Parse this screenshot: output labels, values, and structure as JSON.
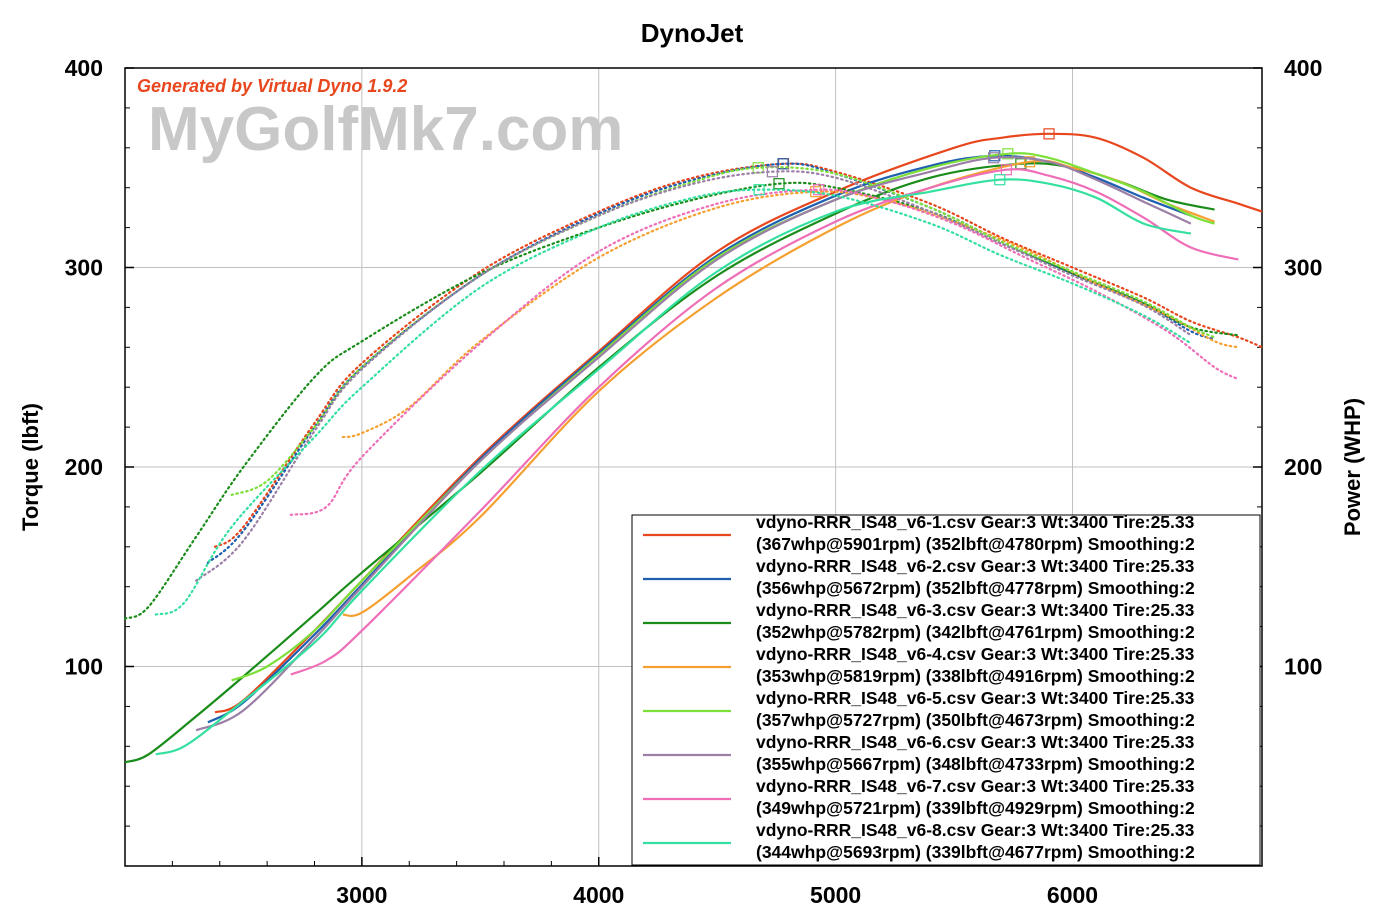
{
  "chart_data": {
    "type": "line",
    "title": "DynoJet",
    "generator_note": "Generated by Virtual Dyno 1.9.2",
    "watermark": "MyGolfMk7.com",
    "ylabel_left": "Torque (lbft)",
    "ylabel_right": "Power (WHP)",
    "xlim": [
      2000,
      6800
    ],
    "ylim": [
      0,
      400
    ],
    "x_ticks": [
      3000,
      4000,
      5000,
      6000
    ],
    "y_ticks": [
      100,
      200,
      300,
      400
    ],
    "grid": true,
    "legend_position": "bottom-right",
    "series": [
      {
        "name": "vdyno-RRR_IS48_v6-1.csv Gear:3 Wt:3400 Tire:25.33",
        "stats": "(367whp@5901rpm) (352lbft@4780rpm) Smoothing:2",
        "color": "#e8471e",
        "power": [
          [
            2380,
            77
          ],
          [
            2500,
            83
          ],
          [
            2800,
            118
          ],
          [
            3000,
            143
          ],
          [
            3500,
            205
          ],
          [
            4000,
            258
          ],
          [
            4500,
            308
          ],
          [
            5000,
            338
          ],
          [
            5500,
            360
          ],
          [
            5700,
            365
          ],
          [
            5900,
            367
          ],
          [
            6100,
            365
          ],
          [
            6300,
            355
          ],
          [
            6500,
            340
          ],
          [
            6700,
            332
          ],
          [
            6800,
            328
          ]
        ],
        "torque": [
          [
            2380,
            160
          ],
          [
            2500,
            170
          ],
          [
            2800,
            222
          ],
          [
            3000,
            252
          ],
          [
            3500,
            298
          ],
          [
            4000,
            328
          ],
          [
            4400,
            345
          ],
          [
            4780,
            352
          ],
          [
            5000,
            348
          ],
          [
            5400,
            332
          ],
          [
            5700,
            315
          ],
          [
            6000,
            300
          ],
          [
            6300,
            285
          ],
          [
            6500,
            273
          ],
          [
            6700,
            265
          ],
          [
            6800,
            260
          ]
        ],
        "peak_hp_rpm": 5901,
        "peak_tq_rpm": 4780
      },
      {
        "name": "vdyno-RRR_IS48_v6-2.csv Gear:3 Wt:3400 Tire:25.33",
        "stats": "(356whp@5672rpm) (352lbft@4778rpm) Smoothing:2",
        "color": "#1f5fb0",
        "power": [
          [
            2350,
            72
          ],
          [
            2500,
            82
          ],
          [
            2800,
            116
          ],
          [
            3000,
            141
          ],
          [
            3500,
            204
          ],
          [
            4000,
            257
          ],
          [
            4500,
            306
          ],
          [
            5000,
            336
          ],
          [
            5400,
            351
          ],
          [
            5672,
            356
          ],
          [
            5900,
            353
          ],
          [
            6100,
            345
          ],
          [
            6300,
            335
          ],
          [
            6500,
            326
          ]
        ],
        "torque": [
          [
            2350,
            152
          ],
          [
            2500,
            168
          ],
          [
            2800,
            220
          ],
          [
            3000,
            250
          ],
          [
            3500,
            296
          ],
          [
            4000,
            327
          ],
          [
            4400,
            344
          ],
          [
            4778,
            352
          ],
          [
            5000,
            347
          ],
          [
            5400,
            330
          ],
          [
            5700,
            313
          ],
          [
            6000,
            297
          ],
          [
            6300,
            282
          ],
          [
            6500,
            268
          ],
          [
            6600,
            264
          ]
        ],
        "peak_hp_rpm": 5672,
        "peak_tq_rpm": 4778
      },
      {
        "name": "vdyno-RRR_IS48_v6-3.csv Gear:3 Wt:3400 Tire:25.33",
        "stats": "(352whp@5782rpm) (342lbft@4761rpm) Smoothing:2",
        "color": "#1a8c1a",
        "power": [
          [
            2000,
            52
          ],
          [
            2100,
            56
          ],
          [
            2300,
            75
          ],
          [
            2500,
            95
          ],
          [
            2800,
            126
          ],
          [
            3000,
            147
          ],
          [
            3500,
            197
          ],
          [
            4000,
            250
          ],
          [
            4500,
            296
          ],
          [
            5000,
            327
          ],
          [
            5400,
            345
          ],
          [
            5782,
            352
          ],
          [
            6000,
            350
          ],
          [
            6200,
            343
          ],
          [
            6400,
            334
          ],
          [
            6600,
            329
          ]
        ],
        "torque": [
          [
            2000,
            124
          ],
          [
            2100,
            130
          ],
          [
            2300,
            165
          ],
          [
            2500,
            200
          ],
          [
            2800,
            245
          ],
          [
            3000,
            263
          ],
          [
            3500,
            297
          ],
          [
            4000,
            320
          ],
          [
            4400,
            334
          ],
          [
            4761,
            342
          ],
          [
            5000,
            340
          ],
          [
            5400,
            328
          ],
          [
            5700,
            312
          ],
          [
            6000,
            297
          ],
          [
            6300,
            282
          ],
          [
            6500,
            270
          ],
          [
            6700,
            266
          ]
        ],
        "peak_hp_rpm": 5782,
        "peak_tq_rpm": 4761
      },
      {
        "name": "vdyno-RRR_IS48_v6-4.csv Gear:3 Wt:3400 Tire:25.33",
        "stats": "(353whp@5819rpm) (338lbft@4916rpm) Smoothing:2",
        "color": "#f5a030",
        "power": [
          [
            2920,
            126
          ],
          [
            3000,
            127
          ],
          [
            3200,
            145
          ],
          [
            3500,
            175
          ],
          [
            4000,
            238
          ],
          [
            4500,
            285
          ],
          [
            5000,
            320
          ],
          [
            5400,
            340
          ],
          [
            5819,
            353
          ],
          [
            6000,
            350
          ],
          [
            6200,
            343
          ],
          [
            6400,
            332
          ],
          [
            6600,
            323
          ]
        ],
        "torque": [
          [
            2920,
            215
          ],
          [
            3000,
            217
          ],
          [
            3200,
            230
          ],
          [
            3500,
            263
          ],
          [
            4000,
            305
          ],
          [
            4500,
            330
          ],
          [
            4916,
            338
          ],
          [
            5200,
            334
          ],
          [
            5500,
            323
          ],
          [
            5800,
            309
          ],
          [
            6100,
            292
          ],
          [
            6400,
            276
          ],
          [
            6600,
            263
          ],
          [
            6700,
            260
          ]
        ],
        "peak_hp_rpm": 5819,
        "peak_tq_rpm": 4916
      },
      {
        "name": "vdyno-RRR_IS48_v6-5.csv Gear:3 Wt:3400 Tire:25.33",
        "stats": "(357whp@5727rpm) (350lbft@4673rpm) Smoothing:2",
        "color": "#7de03a",
        "power": [
          [
            2450,
            93
          ],
          [
            2600,
            100
          ],
          [
            2800,
            118
          ],
          [
            3000,
            143
          ],
          [
            3500,
            203
          ],
          [
            4000,
            256
          ],
          [
            4500,
            305
          ],
          [
            5000,
            334
          ],
          [
            5400,
            350
          ],
          [
            5727,
            357
          ],
          [
            5900,
            355
          ],
          [
            6100,
            347
          ],
          [
            6300,
            338
          ],
          [
            6500,
            326
          ],
          [
            6600,
            322
          ]
        ],
        "torque": [
          [
            2450,
            186
          ],
          [
            2600,
            193
          ],
          [
            2800,
            220
          ],
          [
            3000,
            250
          ],
          [
            3500,
            296
          ],
          [
            4000,
            326
          ],
          [
            4400,
            343
          ],
          [
            4673,
            350
          ],
          [
            5000,
            347
          ],
          [
            5400,
            330
          ],
          [
            5700,
            313
          ],
          [
            6000,
            298
          ],
          [
            6300,
            283
          ],
          [
            6500,
            270
          ],
          [
            6600,
            265
          ]
        ],
        "peak_hp_rpm": 5727,
        "peak_tq_rpm": 4673
      },
      {
        "name": "vdyno-RRR_IS48_v6-6.csv Gear:3 Wt:3400 Tire:25.33",
        "stats": "(355whp@5667rpm) (348lbft@4733rpm) Smoothing:2",
        "color": "#9b7fa6",
        "power": [
          [
            2300,
            68
          ],
          [
            2500,
            78
          ],
          [
            2800,
            114
          ],
          [
            3000,
            140
          ],
          [
            3500,
            203
          ],
          [
            4000,
            255
          ],
          [
            4500,
            304
          ],
          [
            5000,
            334
          ],
          [
            5400,
            348
          ],
          [
            5667,
            355
          ],
          [
            5900,
            353
          ],
          [
            6100,
            344
          ],
          [
            6300,
            333
          ],
          [
            6500,
            322
          ]
        ],
        "torque": [
          [
            2300,
            143
          ],
          [
            2500,
            163
          ],
          [
            2800,
            218
          ],
          [
            3000,
            249
          ],
          [
            3500,
            296
          ],
          [
            4000,
            326
          ],
          [
            4400,
            342
          ],
          [
            4733,
            348
          ],
          [
            5000,
            345
          ],
          [
            5400,
            328
          ],
          [
            5700,
            312
          ],
          [
            6000,
            296
          ],
          [
            6300,
            281
          ],
          [
            6500,
            266
          ]
        ],
        "peak_hp_rpm": 5667,
        "peak_tq_rpm": 4733
      },
      {
        "name": "vdyno-RRR_IS48_v6-7.csv Gear:3 Wt:3400 Tire:25.33",
        "stats": "(349whp@5721rpm) (339lbft@4929rpm) Smoothing:2",
        "color": "#ee6eb7",
        "power": [
          [
            2700,
            96
          ],
          [
            2850,
            103
          ],
          [
            3000,
            118
          ],
          [
            3500,
            178
          ],
          [
            4000,
            240
          ],
          [
            4500,
            290
          ],
          [
            5000,
            323
          ],
          [
            5400,
            340
          ],
          [
            5721,
            349
          ],
          [
            5900,
            346
          ],
          [
            6100,
            338
          ],
          [
            6300,
            325
          ],
          [
            6500,
            310
          ],
          [
            6700,
            304
          ]
        ],
        "torque": [
          [
            2700,
            176
          ],
          [
            2850,
            180
          ],
          [
            3000,
            205
          ],
          [
            3500,
            262
          ],
          [
            4000,
            308
          ],
          [
            4500,
            332
          ],
          [
            4929,
            339
          ],
          [
            5200,
            334
          ],
          [
            5500,
            322
          ],
          [
            5800,
            305
          ],
          [
            6100,
            288
          ],
          [
            6400,
            268
          ],
          [
            6600,
            250
          ],
          [
            6700,
            244
          ]
        ],
        "peak_hp_rpm": 5721,
        "peak_tq_rpm": 4929
      },
      {
        "name": "vdyno-RRR_IS48_v6-8.csv Gear:3 Wt:3400 Tire:25.33",
        "stats": "(344whp@5693rpm) (339lbft@4677rpm) Smoothing:2",
        "color": "#33e0a0",
        "power": [
          [
            2130,
            56
          ],
          [
            2250,
            60
          ],
          [
            2450,
            78
          ],
          [
            2800,
            112
          ],
          [
            3000,
            138
          ],
          [
            3500,
            198
          ],
          [
            4000,
            249
          ],
          [
            4500,
            298
          ],
          [
            5000,
            328
          ],
          [
            5400,
            338
          ],
          [
            5693,
            344
          ],
          [
            5900,
            342
          ],
          [
            6100,
            335
          ],
          [
            6300,
            322
          ],
          [
            6500,
            317
          ]
        ],
        "torque": [
          [
            2130,
            126
          ],
          [
            2250,
            132
          ],
          [
            2450,
            170
          ],
          [
            2800,
            215
          ],
          [
            3000,
            240
          ],
          [
            3500,
            290
          ],
          [
            4000,
            320
          ],
          [
            4400,
            335
          ],
          [
            4677,
            339
          ],
          [
            5000,
            336
          ],
          [
            5400,
            322
          ],
          [
            5700,
            306
          ],
          [
            6000,
            292
          ],
          [
            6300,
            276
          ],
          [
            6500,
            262
          ]
        ],
        "peak_hp_rpm": 5693,
        "peak_tq_rpm": 4677
      }
    ]
  }
}
